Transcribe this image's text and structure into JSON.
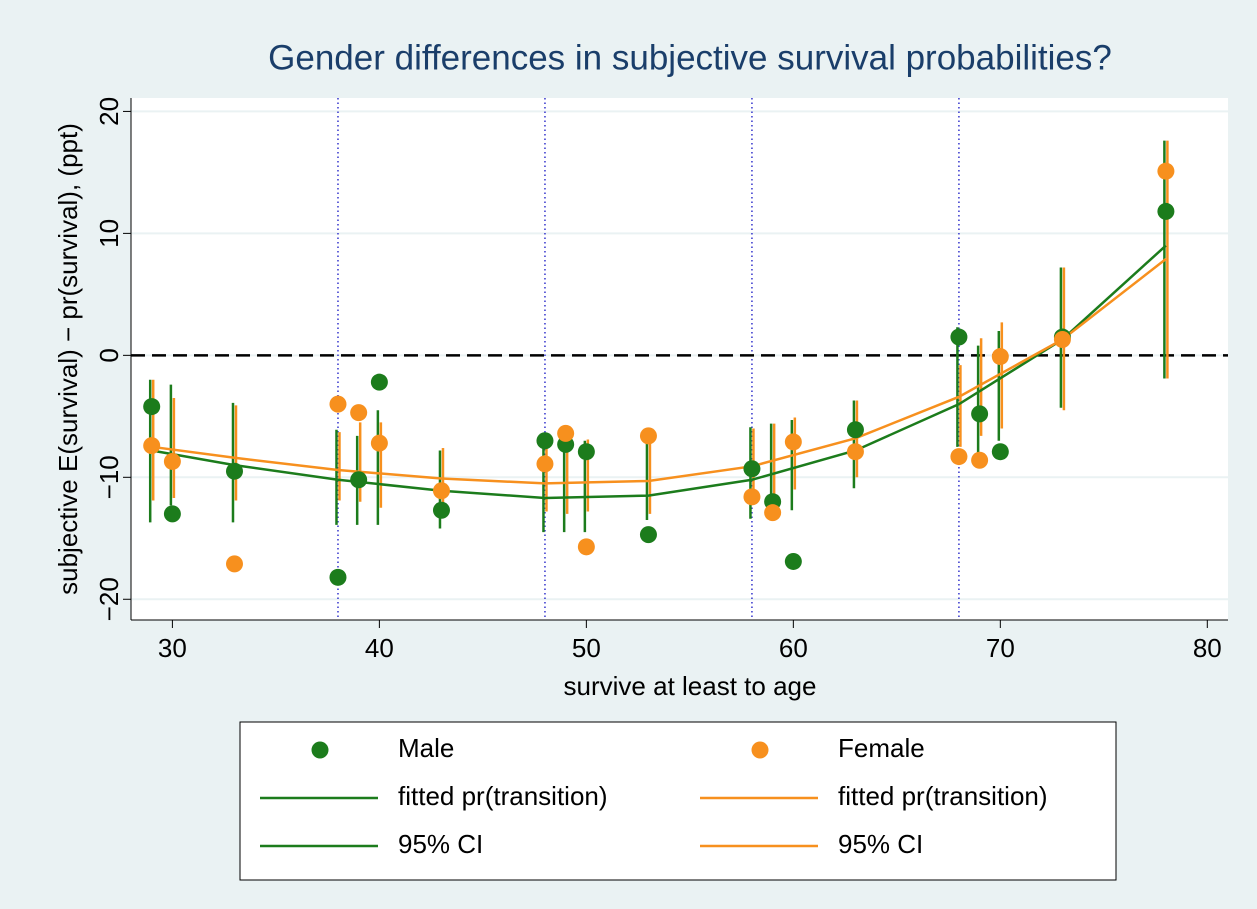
{
  "chart_data": {
    "type": "scatter",
    "title": "Gender differences in subjective survival probabilities?",
    "xlabel": "survive at least to age",
    "ylabel": "subjective E(survival) − pr(survival), (ppt)",
    "x": [
      29,
      30,
      33,
      38,
      39,
      40,
      43,
      48,
      49,
      50,
      53,
      58,
      59,
      60,
      63,
      68,
      69,
      70,
      73,
      78
    ],
    "fit_x": [
      29,
      33,
      38,
      43,
      48,
      53,
      58,
      63,
      68,
      73,
      78
    ],
    "series": [
      {
        "name": "Male",
        "color": "#1c7c1c",
        "values": [
          -4.2,
          -13.0,
          -9.5,
          -18.2,
          -10.2,
          -2.2,
          -12.7,
          -7.0,
          -7.3,
          -7.9,
          -14.7,
          -9.3,
          -12.0,
          -16.9,
          -6.1,
          1.5,
          -4.8,
          -7.9,
          1.5,
          11.8
        ],
        "ci_low": [
          -13.7,
          -12.3,
          -13.7,
          -13.9,
          -13.9,
          -13.9,
          -14.2,
          -14.5,
          -14.5,
          -14.5,
          -13.5,
          -13.4,
          -12.9,
          -12.7,
          -10.9,
          -7.5,
          -8.0,
          -7.0,
          -4.3,
          -1.9
        ],
        "ci_high": [
          -2.0,
          -2.4,
          -3.9,
          -6.1,
          -6.6,
          -4.5,
          -7.8,
          -6.6,
          -6.1,
          -7.0,
          -6.5,
          -5.9,
          -5.6,
          -5.3,
          -3.7,
          2.3,
          0.8,
          2.0,
          7.2,
          17.6
        ],
        "fit_name": "fitted pr(transition)",
        "fit_values": [
          -7.8,
          -9.0,
          -10.2,
          -11.1,
          -11.7,
          -11.5,
          -10.2,
          -7.8,
          -4.0,
          1.3,
          9.0
        ],
        "ci_name": "95% CI"
      },
      {
        "name": "Female",
        "color": "#f7901e",
        "values": [
          -7.4,
          -8.7,
          -17.1,
          -4.0,
          -4.7,
          -7.2,
          -11.1,
          -8.9,
          -6.4,
          -15.7,
          -6.6,
          -11.6,
          -12.9,
          -7.1,
          -7.9,
          -8.3,
          -8.6,
          -0.1,
          1.3,
          15.1
        ],
        "ci_low": [
          -11.9,
          -11.7,
          -11.9,
          -11.9,
          -12.0,
          -12.5,
          -12.6,
          -12.8,
          -13.0,
          -12.8,
          -13.0,
          -12.0,
          -11.5,
          -11.0,
          -10.0,
          -7.5,
          -6.6,
          -6.0,
          -4.5,
          -1.9
        ],
        "ci_high": [
          -2.0,
          -3.5,
          -4.1,
          -6.3,
          -5.5,
          -5.5,
          -7.6,
          -6.6,
          -6.1,
          -6.9,
          -6.5,
          -6.0,
          -5.6,
          -5.1,
          -3.7,
          -0.8,
          1.4,
          2.7,
          7.2,
          17.6
        ],
        "fit_name": "fitted pr(transition)",
        "fit_values": [
          -7.5,
          -8.4,
          -9.4,
          -10.1,
          -10.5,
          -10.3,
          -9.1,
          -6.8,
          -3.4,
          1.3,
          7.9
        ],
        "ci_name": "95% CI"
      }
    ],
    "xlim": [
      28,
      81
    ],
    "ylim": [
      -21.7,
      21.1
    ],
    "xticks": [
      30,
      40,
      50,
      60,
      70,
      80
    ],
    "yticks": [
      {
        "value": -20,
        "label": "−20"
      },
      {
        "value": -10,
        "label": "−10"
      },
      0,
      10,
      20
    ],
    "xlines": [
      38,
      48,
      58,
      68
    ],
    "yline": 0,
    "grid": true
  }
}
